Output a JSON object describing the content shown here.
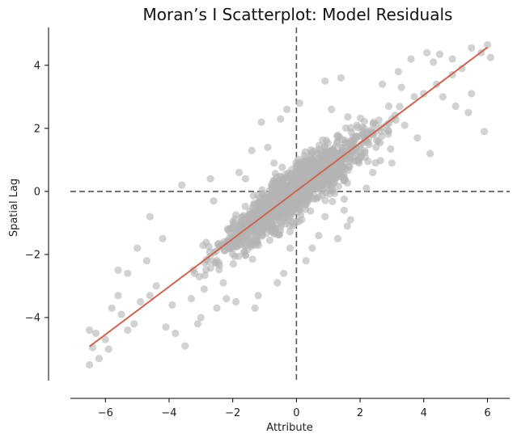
{
  "chart_data": {
    "type": "scatter",
    "title": "Moran’s I Scatterplot: Model Residuals",
    "xlabel": "Attribute",
    "ylabel": "Spatial Lag",
    "xlim": [
      -7.1,
      6.7
    ],
    "ylim": [
      -6.0,
      5.2
    ],
    "xticks": [
      -6,
      -4,
      -2,
      0,
      2,
      4,
      6
    ],
    "yticks": [
      -4,
      -2,
      0,
      2,
      4
    ],
    "xtick_labels": [
      "−6",
      "−4",
      "−2",
      "0",
      "2",
      "4",
      "6"
    ],
    "ytick_labels": [
      "−4",
      "−2",
      "0",
      "2",
      "4"
    ],
    "reference_lines": {
      "x": 0,
      "y": 0,
      "style": "dashed"
    },
    "fit_line": {
      "x": [
        -6.5,
        6.0
      ],
      "y": [
        -4.92,
        4.57
      ],
      "color": "#cc6650"
    },
    "point_color": "#b4b4b4",
    "grid": false,
    "legend": "none",
    "points": [
      [
        6.0,
        4.65
      ],
      [
        6.1,
        4.25
      ],
      [
        5.8,
        4.4
      ],
      [
        5.5,
        4.55
      ],
      [
        5.9,
        1.9
      ],
      [
        5.5,
        3.1
      ],
      [
        5.4,
        2.5
      ],
      [
        4.9,
        4.2
      ],
      [
        4.5,
        4.35
      ],
      [
        4.3,
        4.1
      ],
      [
        4.9,
        3.7
      ],
      [
        5.0,
        2.7
      ],
      [
        4.2,
        1.2
      ],
      [
        4.6,
        3.0
      ],
      [
        4.1,
        4.4
      ],
      [
        3.6,
        4.2
      ],
      [
        3.2,
        3.8
      ],
      [
        3.8,
        1.7
      ],
      [
        3.0,
        0.9
      ],
      [
        2.5,
        1.4
      ],
      [
        2.4,
        0.6
      ],
      [
        2.2,
        0.1
      ],
      [
        1.7,
        -0.9
      ],
      [
        1.5,
        -0.6
      ],
      [
        1.6,
        -1.1
      ],
      [
        1.3,
        -1.5
      ],
      [
        1.4,
        3.6
      ],
      [
        0.9,
        3.5
      ],
      [
        0.7,
        -1.4
      ],
      [
        0.5,
        -1.8
      ],
      [
        0.1,
        2.8
      ],
      [
        -0.3,
        2.6
      ],
      [
        -0.5,
        2.3
      ],
      [
        -0.9,
        1.4
      ],
      [
        -1.1,
        2.2
      ],
      [
        -1.4,
        1.3
      ],
      [
        -0.2,
        -1.8
      ],
      [
        -0.4,
        -2.6
      ],
      [
        -0.6,
        -2.9
      ],
      [
        -1.2,
        -3.3
      ],
      [
        -1.3,
        -3.7
      ],
      [
        -1.9,
        -3.5
      ],
      [
        -2.2,
        -3.4
      ],
      [
        -2.5,
        -3.7
      ],
      [
        -3.0,
        -4.0
      ],
      [
        -3.1,
        -4.2
      ],
      [
        -3.5,
        -4.9
      ],
      [
        -3.6,
        0.2
      ],
      [
        -2.7,
        0.4
      ],
      [
        -4.6,
        -0.8
      ],
      [
        -3.2,
        -2.6
      ],
      [
        -4.2,
        -1.5
      ],
      [
        -4.7,
        -2.2
      ],
      [
        -4.6,
        -3.3
      ],
      [
        -4.1,
        -4.3
      ],
      [
        -3.8,
        -4.5
      ],
      [
        -4.9,
        -3.5
      ],
      [
        -5.3,
        -2.6
      ],
      [
        -5.0,
        -1.8
      ],
      [
        -5.8,
        -3.7
      ],
      [
        -5.6,
        -3.3
      ],
      [
        -5.5,
        -3.9
      ],
      [
        -5.1,
        -4.2
      ],
      [
        -5.3,
        -4.4
      ],
      [
        -5.9,
        -5.0
      ],
      [
        -6.2,
        -5.3
      ],
      [
        -6.3,
        -4.5
      ],
      [
        -6.5,
        -4.4
      ],
      [
        -6.4,
        -4.95
      ],
      [
        -6.5,
        -5.5
      ],
      [
        -6.0,
        -4.7
      ],
      [
        -5.6,
        -2.5
      ],
      [
        -4.4,
        -3.0
      ],
      [
        -3.9,
        -3.6
      ],
      [
        -2.9,
        -3.1
      ],
      [
        -2.6,
        -0.3
      ],
      [
        -1.8,
        0.6
      ],
      [
        -1.6,
        0.4
      ],
      [
        0.3,
        -2.2
      ],
      [
        0.9,
        -0.8
      ],
      [
        1.9,
        2.1
      ],
      [
        2.9,
        2.7
      ],
      [
        3.3,
        3.3
      ],
      [
        3.7,
        3.0
      ],
      [
        4.4,
        3.4
      ],
      [
        5.2,
        3.9
      ],
      [
        3.4,
        2.1
      ],
      [
        2.7,
        3.4
      ],
      [
        1.1,
        2.6
      ],
      [
        -0.7,
        0.9
      ],
      [
        -2.3,
        -2.9
      ],
      [
        -3.3,
        -3.4
      ],
      [
        2.0,
        1.2
      ],
      [
        1.0,
        0.2
      ],
      [
        -1.0,
        -1.0
      ],
      [
        -2.0,
        -1.8
      ],
      [
        3.0,
        2.3
      ],
      [
        4.0,
        3.1
      ]
    ]
  }
}
